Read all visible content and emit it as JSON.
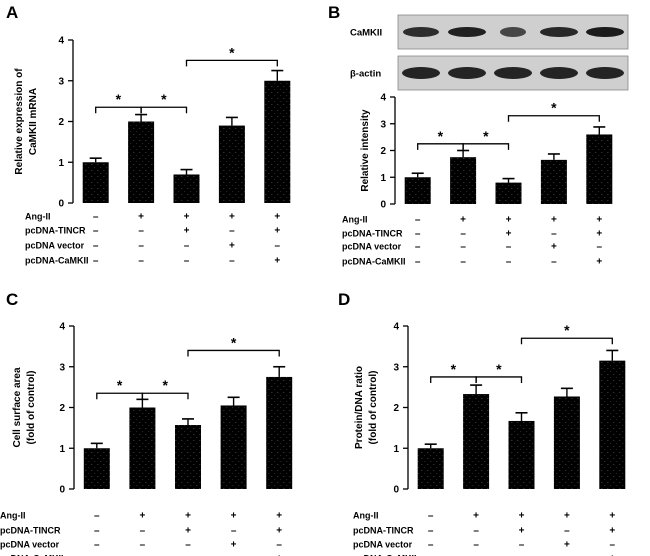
{
  "condition_labels": [
    "Ang-II",
    "pcDNA-TINCR",
    "pcDNA vector",
    "pcDNA-CaMKII"
  ],
  "condition_signs": [
    [
      "–",
      "+",
      "+",
      "+",
      "+"
    ],
    [
      "–",
      "–",
      "+",
      "–",
      "+"
    ],
    [
      "–",
      "–",
      "–",
      "+",
      "–"
    ],
    [
      "–",
      "–",
      "–",
      "–",
      "+"
    ]
  ],
  "significance_marker": "*",
  "colors": {
    "bar": "#000000",
    "axis": "#000000",
    "background": "#ffffff"
  },
  "blot": {
    "labels": [
      "CaMKII",
      "β-actin"
    ]
  },
  "chart_data": [
    {
      "panel": "A",
      "type": "bar",
      "ylabel": [
        "Relative expression of",
        "CaMKII  mRNA"
      ],
      "ylim": [
        0,
        4
      ],
      "yticks": [
        0,
        1,
        2,
        3,
        4
      ],
      "values": [
        1.0,
        2.0,
        0.7,
        1.9,
        3.0
      ],
      "errors": [
        0.1,
        0.17,
        0.12,
        0.2,
        0.25
      ],
      "comparisons": [
        [
          0,
          1,
          2.35
        ],
        [
          1,
          2,
          2.35
        ],
        [
          2,
          4,
          3.5
        ]
      ]
    },
    {
      "panel": "B",
      "type": "bar",
      "ylabel": [
        "Relative intensity"
      ],
      "ylim": [
        0,
        4
      ],
      "yticks": [
        0,
        1,
        2,
        3,
        4
      ],
      "values": [
        1.0,
        1.75,
        0.8,
        1.65,
        2.6
      ],
      "errors": [
        0.15,
        0.25,
        0.15,
        0.22,
        0.28
      ],
      "comparisons": [
        [
          0,
          1,
          2.25
        ],
        [
          1,
          2,
          2.25
        ],
        [
          2,
          4,
          3.3
        ]
      ]
    },
    {
      "panel": "C",
      "type": "bar",
      "ylabel": [
        "Cell surface area",
        "(fold of control)"
      ],
      "ylim": [
        0,
        4
      ],
      "yticks": [
        0,
        1,
        2,
        3,
        4
      ],
      "values": [
        1.0,
        2.0,
        1.57,
        2.05,
        2.75
      ],
      "errors": [
        0.12,
        0.2,
        0.15,
        0.2,
        0.25
      ],
      "comparisons": [
        [
          0,
          1,
          2.35
        ],
        [
          1,
          2,
          2.35
        ],
        [
          2,
          4,
          3.4
        ]
      ]
    },
    {
      "panel": "D",
      "type": "bar",
      "ylabel": [
        "Protein/DNA ratio",
        "(fold of control)"
      ],
      "ylim": [
        0,
        4
      ],
      "yticks": [
        0,
        1,
        2,
        3,
        4
      ],
      "values": [
        1.0,
        2.33,
        1.67,
        2.27,
        3.15
      ],
      "errors": [
        0.1,
        0.22,
        0.2,
        0.2,
        0.25
      ],
      "comparisons": [
        [
          0,
          1,
          2.75
        ],
        [
          1,
          2,
          2.75
        ],
        [
          2,
          4,
          3.7
        ]
      ]
    }
  ]
}
